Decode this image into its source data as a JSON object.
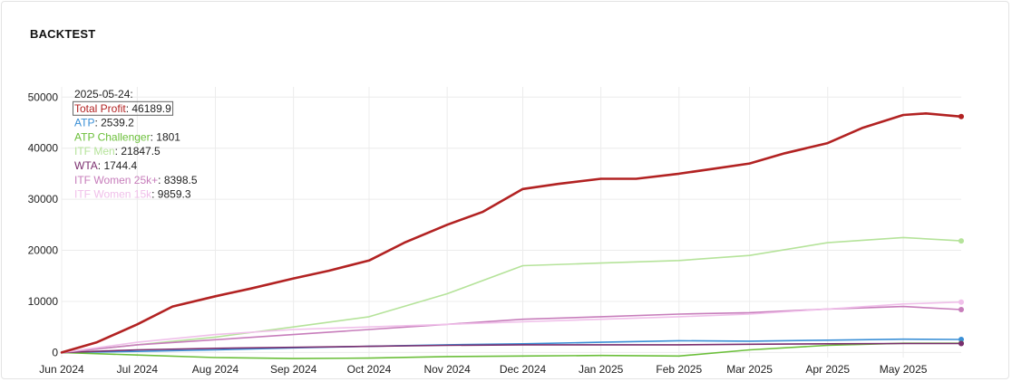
{
  "card": {
    "title": "BACKTEST"
  },
  "chart_data": {
    "type": "line",
    "title": "BACKTEST",
    "x_start": "2024-06-01",
    "x_end": "2025-05-24",
    "x_tick_labels": [
      "Jun 2024",
      "Jul 2024",
      "Aug 2024",
      "Sep 2024",
      "Oct 2024",
      "Nov 2024",
      "Dec 2024",
      "Jan 2025",
      "Feb 2025",
      "Mar 2025",
      "Apr 2025",
      "May 2025"
    ],
    "x_tick_dates": [
      "2024-06-01",
      "2024-07-01",
      "2024-08-01",
      "2024-09-01",
      "2024-10-01",
      "2024-11-01",
      "2024-12-01",
      "2025-01-01",
      "2025-02-01",
      "2025-03-01",
      "2025-04-01",
      "2025-05-01"
    ],
    "ylim": [
      -1000,
      52000
    ],
    "y_ticks": [
      0,
      10000,
      20000,
      30000,
      40000,
      50000
    ],
    "grid": true,
    "legend": {
      "date_label": "2025-05-24:",
      "highlighted": "Total Profit",
      "position": "top-left"
    },
    "series": [
      {
        "name": "Total Profit",
        "color": "#b22222",
        "width": 2.6,
        "final": "46189.9",
        "x": [
          "2024-06-01",
          "2024-06-15",
          "2024-07-01",
          "2024-07-15",
          "2024-08-01",
          "2024-08-15",
          "2024-09-01",
          "2024-09-15",
          "2024-10-01",
          "2024-10-15",
          "2024-11-01",
          "2024-11-15",
          "2024-12-01",
          "2024-12-15",
          "2025-01-01",
          "2025-01-15",
          "2025-02-01",
          "2025-02-15",
          "2025-03-01",
          "2025-03-15",
          "2025-04-01",
          "2025-04-15",
          "2025-05-01",
          "2025-05-10",
          "2025-05-24"
        ],
        "y": [
          0,
          2000,
          5500,
          9000,
          11000,
          12500,
          14500,
          16000,
          18000,
          21500,
          25000,
          27500,
          32000,
          33000,
          34000,
          34000,
          35000,
          36000,
          37000,
          39000,
          41000,
          44000,
          46500,
          46800,
          46189.9
        ]
      },
      {
        "name": "ATP",
        "color": "#3a8fd6",
        "width": 1.6,
        "final": "2539.2",
        "x": [
          "2024-06-01",
          "2024-07-01",
          "2024-08-01",
          "2024-09-01",
          "2024-10-01",
          "2024-11-01",
          "2024-12-01",
          "2025-01-01",
          "2025-02-01",
          "2025-03-01",
          "2025-04-01",
          "2025-05-01",
          "2025-05-24"
        ],
        "y": [
          0,
          200,
          500,
          900,
          1200,
          1500,
          1700,
          2000,
          2300,
          2200,
          2400,
          2600,
          2539.2
        ]
      },
      {
        "name": "ATP Challenger",
        "color": "#6bbf3a",
        "width": 1.6,
        "final": "1801",
        "x": [
          "2024-06-01",
          "2024-07-01",
          "2024-08-01",
          "2024-09-01",
          "2024-10-01",
          "2024-11-01",
          "2024-12-01",
          "2025-01-01",
          "2025-02-01",
          "2025-03-01",
          "2025-04-01",
          "2025-05-01",
          "2025-05-24"
        ],
        "y": [
          0,
          -500,
          -1000,
          -1200,
          -1100,
          -800,
          -700,
          -600,
          -700,
          500,
          1400,
          1800,
          1801
        ]
      },
      {
        "name": "ITF Men",
        "color": "#b5e39a",
        "width": 1.6,
        "final": "21847.5",
        "x": [
          "2024-06-01",
          "2024-07-01",
          "2024-08-01",
          "2024-09-01",
          "2024-10-01",
          "2024-11-01",
          "2024-12-01",
          "2025-01-01",
          "2025-02-01",
          "2025-03-01",
          "2025-04-01",
          "2025-05-01",
          "2025-05-24"
        ],
        "y": [
          0,
          1500,
          3000,
          5000,
          7000,
          11500,
          17000,
          17500,
          18000,
          19000,
          21500,
          22500,
          21847.5
        ]
      },
      {
        "name": "WTA",
        "color": "#7a2e6e",
        "width": 1.6,
        "final": "1744.4",
        "x": [
          "2024-06-01",
          "2024-07-01",
          "2024-08-01",
          "2024-09-01",
          "2024-10-01",
          "2024-11-01",
          "2024-12-01",
          "2025-01-01",
          "2025-02-01",
          "2025-03-01",
          "2025-04-01",
          "2025-05-01",
          "2025-05-24"
        ],
        "y": [
          0,
          500,
          800,
          1000,
          1200,
          1400,
          1500,
          1500,
          1500,
          1600,
          1700,
          1750,
          1744.4
        ]
      },
      {
        "name": "ITF Women 25k+",
        "color": "#c77dbb",
        "width": 1.6,
        "final": "8398.5",
        "x": [
          "2024-06-01",
          "2024-07-01",
          "2024-08-01",
          "2024-09-01",
          "2024-10-01",
          "2024-11-01",
          "2024-12-01",
          "2025-01-01",
          "2025-02-01",
          "2025-03-01",
          "2025-04-01",
          "2025-05-01",
          "2025-05-24"
        ],
        "y": [
          0,
          1500,
          2500,
          3500,
          4500,
          5500,
          6500,
          7000,
          7500,
          7800,
          8500,
          9000,
          8398.5
        ]
      },
      {
        "name": "ITF Women 15k",
        "color": "#f0c0ea",
        "width": 1.6,
        "final": "9859.3",
        "x": [
          "2024-06-01",
          "2024-07-01",
          "2024-08-01",
          "2024-09-01",
          "2024-10-01",
          "2024-11-01",
          "2024-12-01",
          "2025-01-01",
          "2025-02-01",
          "2025-03-01",
          "2025-04-01",
          "2025-05-01",
          "2025-05-24"
        ],
        "y": [
          0,
          2000,
          3500,
          4500,
          5000,
          5500,
          6000,
          6500,
          7000,
          7500,
          8500,
          9500,
          9859.3
        ]
      }
    ]
  }
}
